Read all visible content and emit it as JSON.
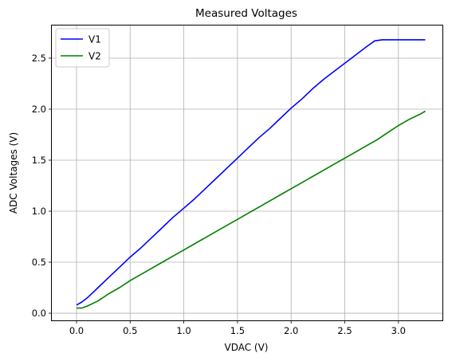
{
  "chart_data": {
    "type": "line",
    "title": "Measured Voltages",
    "xlabel": "VDAC (V)",
    "ylabel": "ADC Voltages (V)",
    "xlim": [
      -0.23,
      3.41
    ],
    "ylim": [
      -0.07,
      2.82
    ],
    "grid": true,
    "legend_position": "top-left",
    "x_ticks": [
      {
        "value": 0.0,
        "label": "0.0"
      },
      {
        "value": 0.5,
        "label": "0.5"
      },
      {
        "value": 1.0,
        "label": "1.0"
      },
      {
        "value": 1.5,
        "label": "1.5"
      },
      {
        "value": 2.0,
        "label": "2.0"
      },
      {
        "value": 2.5,
        "label": "2.5"
      },
      {
        "value": 3.0,
        "label": "3.0"
      }
    ],
    "y_ticks": [
      {
        "value": 0.0,
        "label": "0.0"
      },
      {
        "value": 0.5,
        "label": "0.5"
      },
      {
        "value": 1.0,
        "label": "1.0"
      },
      {
        "value": 1.5,
        "label": "1.5"
      },
      {
        "value": 2.0,
        "label": "2.0"
      },
      {
        "value": 2.5,
        "label": "2.5"
      }
    ],
    "series": [
      {
        "name": "V1",
        "color": "#0000ff",
        "x": [
          0.0,
          0.05,
          0.1,
          0.15,
          0.2,
          0.3,
          0.4,
          0.5,
          0.6,
          0.7,
          0.8,
          0.9,
          1.0,
          1.1,
          1.2,
          1.3,
          1.4,
          1.5,
          1.6,
          1.7,
          1.8,
          1.9,
          2.0,
          2.1,
          2.2,
          2.3,
          2.4,
          2.5,
          2.6,
          2.7,
          2.78,
          2.85,
          3.0,
          3.1,
          3.2,
          3.25
        ],
        "y": [
          0.08,
          0.11,
          0.15,
          0.2,
          0.25,
          0.35,
          0.45,
          0.55,
          0.64,
          0.74,
          0.84,
          0.94,
          1.03,
          1.12,
          1.22,
          1.32,
          1.42,
          1.52,
          1.62,
          1.72,
          1.81,
          1.91,
          2.01,
          2.1,
          2.2,
          2.29,
          2.37,
          2.45,
          2.53,
          2.61,
          2.67,
          2.68,
          2.68,
          2.68,
          2.68,
          2.68
        ]
      },
      {
        "name": "V2",
        "color": "#008000",
        "x": [
          0.0,
          0.05,
          0.1,
          0.2,
          0.3,
          0.4,
          0.5,
          0.6,
          0.7,
          0.8,
          0.9,
          1.0,
          1.1,
          1.2,
          1.3,
          1.4,
          1.5,
          1.6,
          1.7,
          1.8,
          1.9,
          2.0,
          2.1,
          2.2,
          2.3,
          2.4,
          2.5,
          2.6,
          2.7,
          2.8,
          2.9,
          3.0,
          3.1,
          3.2,
          3.25
        ],
        "y": [
          0.05,
          0.05,
          0.07,
          0.12,
          0.19,
          0.25,
          0.32,
          0.38,
          0.44,
          0.5,
          0.56,
          0.62,
          0.68,
          0.74,
          0.8,
          0.86,
          0.92,
          0.98,
          1.04,
          1.1,
          1.16,
          1.22,
          1.28,
          1.34,
          1.4,
          1.46,
          1.52,
          1.58,
          1.64,
          1.7,
          1.77,
          1.84,
          1.9,
          1.95,
          1.98
        ]
      }
    ]
  }
}
